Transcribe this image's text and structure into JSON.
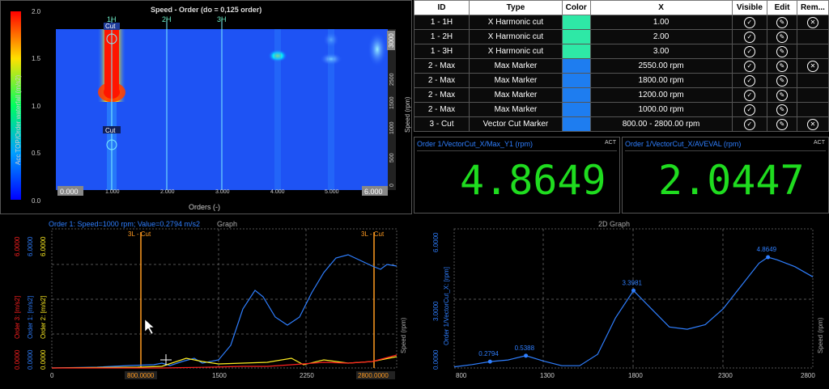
{
  "waterfall": {
    "title": "Speed - Order (do = 0,125 order)",
    "colorbar_label": "Acc TOP/Order waterfall (m/s2)",
    "colorbar_ticks": [
      "2.0",
      "1.5",
      "1.0",
      "0.5",
      "0.0"
    ],
    "y_axis_label": "Speed (rpm)",
    "y_ticks": [
      "3000",
      "2500",
      "2000",
      "1500",
      "1000",
      "500",
      "0"
    ],
    "x_axis_label": "Orders (-)",
    "x_ticks": [
      "1.000",
      "2.000",
      "3.000",
      "4.000",
      "5.000"
    ],
    "x_min_box": "0.000",
    "x_max_box": "6.000",
    "harmonics": [
      "1H",
      "2H",
      "3H"
    ],
    "cut_label_top": "Cut",
    "cut_label_bottom": "Cut",
    "colors": {
      "hot": "#ff2000",
      "cold": "#0a3cff",
      "cyan": "#00ffff"
    }
  },
  "table": {
    "headers": [
      "ID",
      "Type",
      "Color",
      "X",
      "Visible",
      "Edit",
      "Rem..."
    ],
    "rows": [
      {
        "id": "1 - 1H",
        "type": "X Harmonic cut",
        "color": "#2ee8a6",
        "x": "1.00",
        "remove": true
      },
      {
        "id": "1 - 2H",
        "type": "X Harmonic cut",
        "color": "#2ee8a6",
        "x": "2.00",
        "remove": false
      },
      {
        "id": "1 - 3H",
        "type": "X Harmonic cut",
        "color": "#2ee8a6",
        "x": "3.00",
        "remove": false
      },
      {
        "id": "2 - Max",
        "type": "Max Marker",
        "color": "#1e7df0",
        "x": "2550.00 rpm",
        "remove": true
      },
      {
        "id": "2 - Max",
        "type": "Max Marker",
        "color": "#1e7df0",
        "x": "1800.00 rpm",
        "remove": false
      },
      {
        "id": "2 - Max",
        "type": "Max Marker",
        "color": "#1e7df0",
        "x": "1200.00 rpm",
        "remove": false
      },
      {
        "id": "2 - Max",
        "type": "Max Marker",
        "color": "#1e7df0",
        "x": "1000.00 rpm",
        "remove": false
      },
      {
        "id": "3 - Cut",
        "type": "Vector Cut Marker",
        "color": "#1e7df0",
        "x": "800.00 - 2800.00 rpm",
        "remove": true
      }
    ],
    "visible_icon": "✓",
    "edit_icon": "✎",
    "remove_icon": "✕"
  },
  "display1": {
    "title": "Order 1/VectorCut_X/Max_Y1 (rpm)",
    "tag": "ACT",
    "value": "4.8649"
  },
  "display2": {
    "title": "Order 1/VectorCut_X/AVEVAL (rpm)",
    "tag": "ACT",
    "value": "2.0447"
  },
  "graph_left": {
    "title_info": "Order 1: Speed=1000 rpm; Value=0.2794 m/s2",
    "title": "Graph",
    "y_labels": [
      "Order 3: [m/s2]",
      "Order 1: [m/s2]",
      "Order 2: [m/s2]"
    ],
    "y_top_values": [
      "6.0000",
      "6.0000",
      "6.0000"
    ],
    "y_bottom_values": [
      "0.0000",
      "0.0000",
      "0.0000"
    ],
    "right_label": "Speed (rpm)",
    "x_ticks": [
      "0",
      "800.0000",
      "1500",
      "2250",
      "2800.0000"
    ],
    "cut_labels": [
      "3L - Cut",
      "3L - Cut"
    ]
  },
  "graph_right": {
    "title": "2D Graph",
    "y_label": "Order 1/VectorCut_X: [rpm]",
    "y_ticks": [
      "6.0000",
      "3.0000",
      "0.0000"
    ],
    "right_label": "Speed (rpm)",
    "x_ticks": [
      "800",
      "1300",
      "1800",
      "2300",
      "2800"
    ]
  },
  "chart_data": {
    "type": "line",
    "title": "2D Graph",
    "xlabel": "Speed (rpm)",
    "ylabel": "Order 1/VectorCut_X: [rpm]",
    "xlim": [
      800,
      2800
    ],
    "ylim": [
      0,
      6
    ],
    "series": [
      {
        "name": "Order 1/VectorCut_X",
        "x": [
          800,
          900,
          1000,
          1100,
          1200,
          1300,
          1400,
          1500,
          1600,
          1700,
          1800,
          1900,
          2000,
          2100,
          2200,
          2300,
          2400,
          2500,
          2550,
          2600,
          2700,
          2800
        ],
        "y": [
          0.05,
          0.15,
          0.2794,
          0.35,
          0.5388,
          0.3,
          0.1,
          0.1,
          0.6,
          2.2,
          3.3981,
          2.6,
          1.8,
          1.7,
          1.9,
          2.6,
          3.6,
          4.6,
          4.8649,
          4.75,
          4.45,
          4.0
        ]
      }
    ],
    "labels": [
      {
        "x": 1000,
        "y": 0.2794,
        "text": "0.2794"
      },
      {
        "x": 1200,
        "y": 0.5388,
        "text": "0.5388"
      },
      {
        "x": 1800,
        "y": 3.3981,
        "text": "3.3981"
      },
      {
        "x": 2550,
        "y": 4.8649,
        "text": "4.8649"
      }
    ]
  }
}
